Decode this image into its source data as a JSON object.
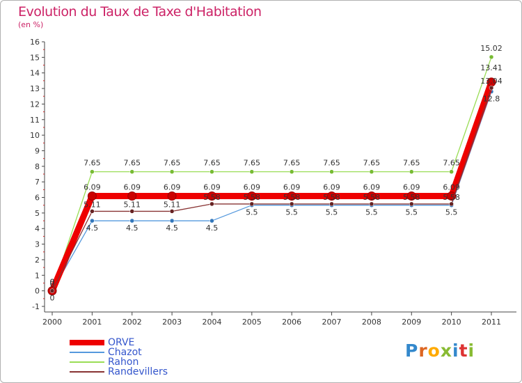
{
  "chart_data": {
    "type": "line",
    "title": "Evolution du Taux de Taxe d'Habitation",
    "subtitle": "(en %)",
    "xlabel": "",
    "ylabel": "",
    "ylim": [
      -1,
      16
    ],
    "yticks": [
      "-1",
      "0",
      "1",
      "2",
      "3",
      "4",
      "5",
      "6",
      "7",
      "8",
      "9",
      "10",
      "11",
      "12",
      "13",
      "14",
      "15",
      "16"
    ],
    "categories": [
      "2000",
      "2001",
      "2002",
      "2003",
      "2004",
      "2005",
      "2006",
      "2007",
      "2008",
      "2009",
      "2010",
      "2011"
    ],
    "grid": false,
    "series": [
      {
        "name": "ORVE",
        "color": "#ee0000",
        "values": [
          0,
          6.09,
          6.09,
          6.09,
          6.09,
          6.09,
          6.09,
          6.09,
          6.09,
          6.09,
          6.09,
          13.41
        ],
        "labels": [
          "0",
          "6.09",
          "6.09",
          "6.09",
          "6.09",
          "6.09",
          "6.09",
          "6.09",
          "6.09",
          "6.09",
          "6.09",
          "13.41"
        ]
      },
      {
        "name": "Chazot",
        "color": "#4488cc",
        "values": [
          0,
          4.5,
          4.5,
          4.5,
          4.5,
          5.5,
          5.5,
          5.5,
          5.5,
          5.5,
          5.5,
          12.8
        ],
        "labels": [
          "0",
          "4.5",
          "4.5",
          "4.5",
          "4.5",
          "5.5",
          "5.5",
          "5.5",
          "5.5",
          "5.5",
          "5.5",
          "12.8"
        ]
      },
      {
        "name": "Rahon",
        "color": "#88cc44",
        "values": [
          0,
          7.65,
          7.65,
          7.65,
          7.65,
          7.65,
          7.65,
          7.65,
          7.65,
          7.65,
          7.65,
          15.02
        ],
        "labels": [
          "0",
          "7.65",
          "7.65",
          "7.65",
          "7.65",
          "7.65",
          "7.65",
          "7.65",
          "7.65",
          "7.65",
          "7.65",
          "15.02"
        ]
      },
      {
        "name": "Randevillers",
        "color": "#772222",
        "values": [
          0,
          5.11,
          5.11,
          5.11,
          5.58,
          5.58,
          5.58,
          5.58,
          5.58,
          5.58,
          5.58,
          13.04
        ],
        "labels": [
          "0",
          "5.11",
          "5.11",
          "5.11",
          "5.58",
          "5.58",
          "5.58",
          "5.58",
          "5.58",
          "5.58",
          "5.58",
          "13.04"
        ]
      }
    ]
  },
  "branding": {
    "logo_letters": [
      "P",
      "r",
      "o",
      "x",
      "i",
      "t",
      "i"
    ],
    "logo_colors": [
      "#3388cc",
      "#dd6622",
      "#ffaa00",
      "#88bb33",
      "#3388cc",
      "#dd3333",
      "#88bb33"
    ]
  }
}
